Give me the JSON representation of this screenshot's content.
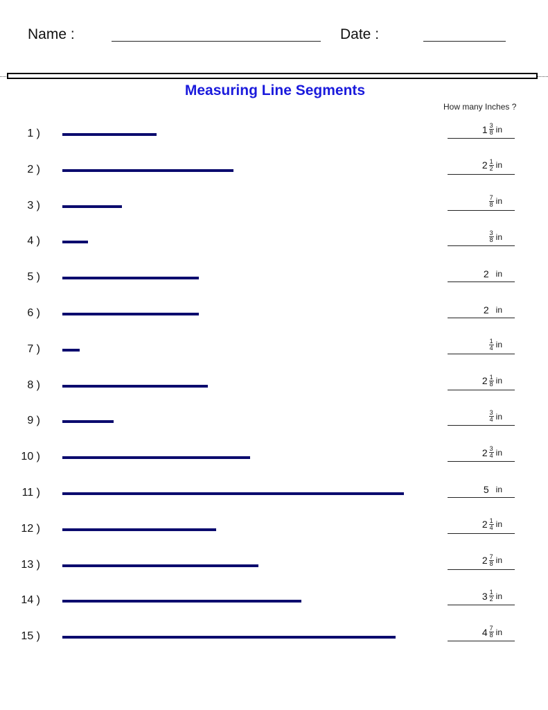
{
  "header": {
    "name_label": "Name :",
    "date_label": "Date :"
  },
  "title": "Measuring Line Segments",
  "answer_column_header": "How many Inches ?",
  "unit": "in",
  "line_color": "#0b0b6e",
  "title_color": "#1a1adc",
  "problems": [
    {
      "label": "1 )",
      "length_in": 1.375,
      "whole": "1",
      "num": "3",
      "den": "8"
    },
    {
      "label": "2 )",
      "length_in": 2.5,
      "whole": "2",
      "num": "1",
      "den": "2"
    },
    {
      "label": "3 )",
      "length_in": 0.875,
      "whole": "",
      "num": "7",
      "den": "8"
    },
    {
      "label": "4 )",
      "length_in": 0.375,
      "whole": "",
      "num": "3",
      "den": "8"
    },
    {
      "label": "5 )",
      "length_in": 2,
      "whole": "2",
      "num": "",
      "den": ""
    },
    {
      "label": "6 )",
      "length_in": 2,
      "whole": "2",
      "num": "",
      "den": ""
    },
    {
      "label": "7 )",
      "length_in": 0.25,
      "whole": "",
      "num": "1",
      "den": "4"
    },
    {
      "label": "8 )",
      "length_in": 2.125,
      "whole": "2",
      "num": "1",
      "den": "8"
    },
    {
      "label": "9 )",
      "length_in": 0.75,
      "whole": "",
      "num": "3",
      "den": "4"
    },
    {
      "label": "10 )",
      "length_in": 2.75,
      "whole": "2",
      "num": "3",
      "den": "4"
    },
    {
      "label": "11 )",
      "length_in": 5,
      "whole": "5",
      "num": "",
      "den": ""
    },
    {
      "label": "12 )",
      "length_in": 2.25,
      "whole": "2",
      "num": "1",
      "den": "4"
    },
    {
      "label": "13 )",
      "length_in": 2.875,
      "whole": "2",
      "num": "7",
      "den": "8"
    },
    {
      "label": "14 )",
      "length_in": 3.5,
      "whole": "3",
      "num": "1",
      "den": "2"
    },
    {
      "label": "15 )",
      "length_in": 4.875,
      "whole": "4",
      "num": "7",
      "den": "8"
    }
  ]
}
